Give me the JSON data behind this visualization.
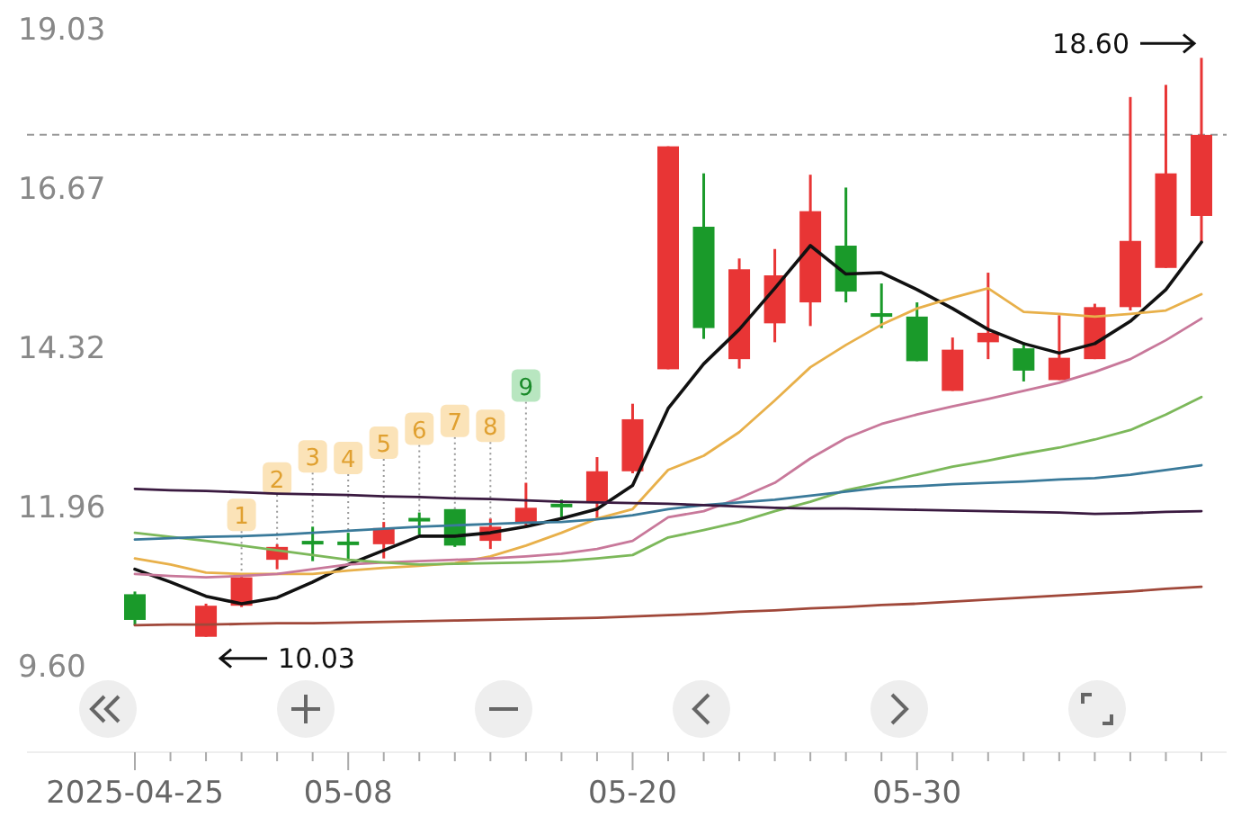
{
  "chart_data": {
    "type": "candlestick",
    "categories": [
      "2025-04-25",
      null,
      null,
      null,
      null,
      null,
      "05-08",
      null,
      null,
      null,
      null,
      null,
      null,
      null,
      "05-20",
      null,
      null,
      null,
      null,
      null,
      null,
      null,
      "05-30",
      null,
      null,
      null,
      null,
      null,
      null,
      null,
      null
    ],
    "ylim": [
      9.6,
      19.03
    ],
    "yticks": [
      {
        "value": 9.6,
        "label": "9.60"
      },
      11.96,
      14.32,
      16.67,
      19.03
    ],
    "ref_lines": [
      {
        "axis": "y",
        "value": 17.46,
        "color": "#999999",
        "line_style": "dashed"
      }
    ],
    "annotations": [
      "18.60",
      "10.03"
    ],
    "series": [
      {
        "ohlc": [
          [
            10.66,
            10.7,
            10.2,
            10.28
          ],
          null,
          [
            10.03,
            10.52,
            10.03,
            10.49
          ],
          [
            10.49,
            10.93,
            10.47,
            10.91
          ],
          [
            11.17,
            11.4,
            11.03,
            11.36
          ],
          [
            11.45,
            11.66,
            11.15,
            11.41
          ],
          [
            11.44,
            11.57,
            11.15,
            11.41
          ],
          [
            11.4,
            11.73,
            11.19,
            11.64
          ],
          [
            11.79,
            11.87,
            11.54,
            11.76
          ],
          [
            11.92,
            11.92,
            11.36,
            11.38
          ],
          [
            11.45,
            11.78,
            11.33,
            11.66
          ],
          [
            11.71,
            12.31,
            11.66,
            11.94
          ],
          [
            12.0,
            12.06,
            11.8,
            11.98
          ],
          [
            12.03,
            12.69,
            11.78,
            12.48
          ],
          [
            12.48,
            13.48,
            12.45,
            13.25
          ],
          [
            13.99,
            17.29,
            13.99,
            17.29
          ],
          [
            16.1,
            16.89,
            14.44,
            14.6
          ],
          [
            14.14,
            15.63,
            14.0,
            15.47
          ],
          [
            14.67,
            15.77,
            14.39,
            15.38
          ],
          [
            14.98,
            16.87,
            14.63,
            16.33
          ],
          [
            15.82,
            16.68,
            14.98,
            15.14
          ],
          [
            14.82,
            15.26,
            14.6,
            14.8
          ],
          [
            14.77,
            14.98,
            14.11,
            14.11
          ],
          [
            13.67,
            14.46,
            13.67,
            14.28
          ],
          [
            14.39,
            15.42,
            14.14,
            14.53
          ],
          [
            14.3,
            14.39,
            13.81,
            13.97
          ],
          [
            13.83,
            14.79,
            13.83,
            14.16
          ],
          [
            14.14,
            14.96,
            14.14,
            14.91
          ],
          [
            14.91,
            18.02,
            14.86,
            15.89
          ],
          [
            15.49,
            18.2,
            15.49,
            16.89
          ],
          [
            16.26,
            18.6,
            15.87,
            17.46
          ]
        ],
        "colors": [
          "#1a9a2a",
          null,
          "#e83535",
          "#e83535",
          "#e83535",
          "#1a9a2a",
          "#1a9a2a",
          "#e83535",
          "#1a9a2a",
          "#1a9a2a",
          "#e83535",
          "#e83535",
          "#1a9a2a",
          "#e83535",
          "#e83535",
          "#e83535",
          "#1a9a2a",
          "#e83535",
          "#e83535",
          "#e83535",
          "#1a9a2a",
          "#1a9a2a",
          "#1a9a2a",
          "#e83535",
          "#e83535",
          "#1a9a2a",
          "#e83535",
          "#e83535",
          "#e83535",
          "#e83535",
          "#e83535"
        ],
        "value_labels": [
          null,
          null,
          null,
          "1",
          "2",
          "3",
          "4",
          "5",
          "6",
          "7",
          "8",
          "9",
          null,
          null,
          null,
          null,
          null,
          null,
          null,
          null,
          null,
          null,
          null,
          null,
          null,
          null,
          null,
          null,
          null,
          null,
          null
        ]
      },
      {
        "type": "line",
        "color": "#111111",
        "values": [
          11.03,
          10.84,
          10.63,
          10.52,
          10.61,
          10.84,
          11.1,
          11.31,
          11.52,
          11.52,
          11.57,
          11.66,
          11.78,
          11.92,
          12.27,
          13.41,
          14.07,
          14.58,
          15.19,
          15.82,
          15.4,
          15.42,
          15.17,
          14.89,
          14.58,
          14.37,
          14.23,
          14.37,
          14.7,
          15.17,
          15.87
        ]
      },
      {
        "type": "line",
        "color": "#e8b04a",
        "values": [
          11.19,
          11.1,
          10.98,
          10.96,
          10.96,
          10.96,
          11.01,
          11.05,
          11.08,
          11.12,
          11.22,
          11.38,
          11.57,
          11.78,
          11.92,
          12.5,
          12.71,
          13.06,
          13.53,
          14.02,
          14.35,
          14.65,
          14.89,
          15.05,
          15.19,
          14.84,
          14.81,
          14.77,
          14.81,
          14.86,
          15.1
        ]
      },
      {
        "type": "line",
        "color": "#c8789a",
        "values": [
          10.96,
          10.93,
          10.91,
          10.93,
          10.96,
          11.03,
          11.1,
          11.13,
          11.15,
          11.17,
          11.19,
          11.22,
          11.26,
          11.33,
          11.45,
          11.8,
          11.89,
          12.08,
          12.31,
          12.67,
          12.97,
          13.18,
          13.32,
          13.44,
          13.55,
          13.67,
          13.79,
          13.95,
          14.14,
          14.42,
          14.74
        ]
      },
      {
        "type": "line",
        "color": "#7cb85a",
        "values": [
          11.57,
          11.51,
          11.45,
          11.38,
          11.31,
          11.24,
          11.17,
          11.13,
          11.1,
          11.11,
          11.12,
          11.13,
          11.15,
          11.19,
          11.24,
          11.5,
          11.61,
          11.73,
          11.89,
          12.03,
          12.2,
          12.31,
          12.43,
          12.55,
          12.64,
          12.74,
          12.83,
          12.95,
          13.09,
          13.32,
          13.58
        ]
      },
      {
        "type": "line",
        "color": "#3a7a9a",
        "values": [
          11.47,
          11.49,
          11.51,
          11.52,
          11.54,
          11.57,
          11.6,
          11.63,
          11.66,
          11.68,
          11.7,
          11.72,
          11.73,
          11.77,
          11.83,
          11.92,
          11.98,
          12.02,
          12.06,
          12.12,
          12.18,
          12.24,
          12.26,
          12.29,
          12.31,
          12.33,
          12.36,
          12.38,
          12.43,
          12.5,
          12.57
        ]
      },
      {
        "type": "line",
        "color": "#3a1a40",
        "values": [
          12.22,
          12.2,
          12.19,
          12.17,
          12.15,
          12.14,
          12.13,
          12.11,
          12.1,
          12.08,
          12.07,
          12.05,
          12.03,
          12.02,
          12.01,
          12.0,
          11.98,
          11.96,
          11.94,
          11.93,
          11.93,
          11.92,
          11.91,
          11.9,
          11.89,
          11.88,
          11.87,
          11.85,
          11.86,
          11.88,
          11.89
        ]
      },
      {
        "type": "line",
        "color": "#a0483a",
        "values": [
          10.2,
          10.21,
          10.21,
          10.22,
          10.23,
          10.23,
          10.24,
          10.25,
          10.26,
          10.27,
          10.28,
          10.29,
          10.3,
          10.31,
          10.33,
          10.35,
          10.37,
          10.4,
          10.42,
          10.45,
          10.47,
          10.5,
          10.52,
          10.55,
          10.58,
          10.61,
          10.64,
          10.67,
          10.7,
          10.74,
          10.77
        ]
      }
    ]
  }
}
